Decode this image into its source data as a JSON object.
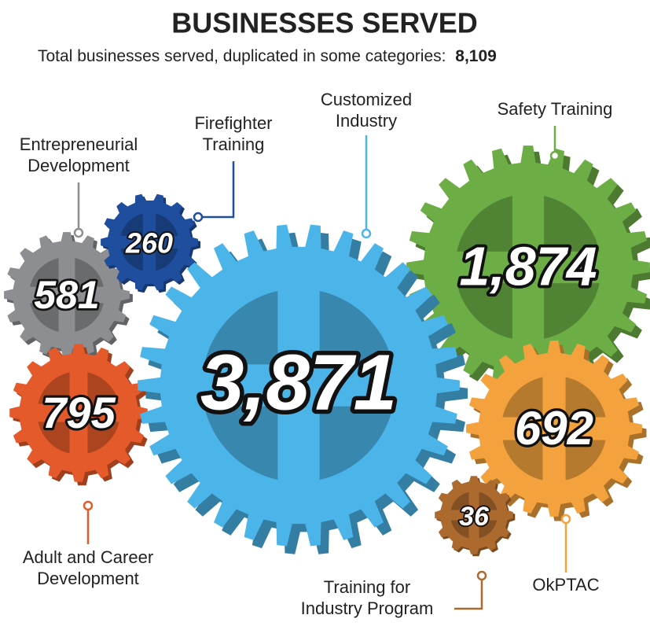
{
  "header": {
    "title": "BUSINESSES SERVED",
    "subtitle": "Total businesses served, duplicated in some categories:",
    "total": "8,109"
  },
  "gears": [
    {
      "label": [
        "Entrepreneurial",
        "Development"
      ],
      "value": "581",
      "color": "#8c8e91"
    },
    {
      "label": [
        "Firefighter",
        "Training"
      ],
      "value": "260",
      "color": "#1f4e9e"
    },
    {
      "label": [
        "Adult and Career",
        "Development"
      ],
      "value": "795",
      "color": "#e55a2b"
    },
    {
      "label": [
        "Safety Training"
      ],
      "value": "1,874",
      "color": "#6cae45"
    },
    {
      "label": [
        "OkPTAC"
      ],
      "value": "692",
      "color": "#f3a23e"
    },
    {
      "label": [
        "Training for",
        "Industry Program"
      ],
      "value": "36",
      "color": "#ad6a2e"
    },
    {
      "label": [
        "Customized",
        "Industry"
      ],
      "value": "3,871",
      "color": "#4bb4e9"
    }
  ]
}
